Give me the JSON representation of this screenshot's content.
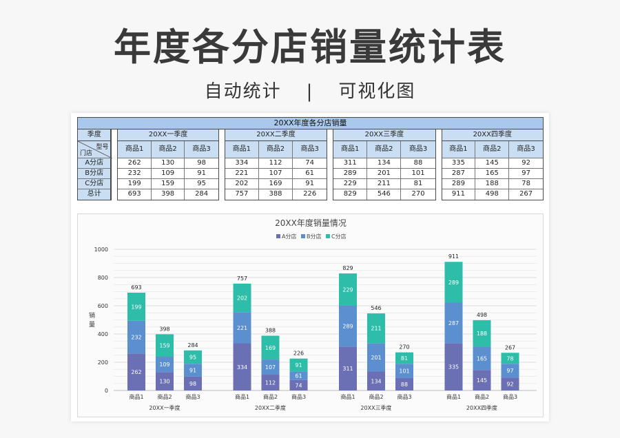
{
  "header": {
    "title": "年度各分店销量统计表",
    "subtitle_left": "自动统计",
    "subtitle_sep": "|",
    "subtitle_right": "可视化图"
  },
  "table": {
    "title": "20XX年度各分店销量",
    "season_label": "季度",
    "corner_top": "型号",
    "corner_bottom": "门店",
    "quarters": [
      {
        "name": "20XX一季度",
        "products": [
          "商品1",
          "商品2",
          "商品3"
        ],
        "rows": [
          [
            262,
            130,
            98
          ],
          [
            232,
            109,
            91
          ],
          [
            199,
            159,
            95
          ]
        ],
        "total": [
          693,
          398,
          284
        ]
      },
      {
        "name": "20XX二季度",
        "products": [
          "商品1",
          "商品2",
          "商品3"
        ],
        "rows": [
          [
            334,
            112,
            74
          ],
          [
            221,
            107,
            61
          ],
          [
            202,
            169,
            91
          ]
        ],
        "total": [
          757,
          388,
          226
        ]
      },
      {
        "name": "20XX三季度",
        "products": [
          "商品1",
          "商品2",
          "商品3"
        ],
        "rows": [
          [
            311,
            134,
            88
          ],
          [
            289,
            201,
            101
          ],
          [
            229,
            211,
            81
          ]
        ],
        "total": [
          829,
          546,
          270
        ]
      },
      {
        "name": "20XX四季度",
        "products": [
          "商品1",
          "商品2",
          "商品3"
        ],
        "rows": [
          [
            335,
            145,
            92
          ],
          [
            287,
            165,
            97
          ],
          [
            289,
            188,
            78
          ]
        ],
        "total": [
          911,
          498,
          267
        ]
      }
    ],
    "row_labels": [
      "A分店",
      "B分店",
      "C分店",
      "总计"
    ]
  },
  "chart_data": {
    "type": "bar",
    "stacked": true,
    "title": "20XX年度销量情况",
    "ylabel": "销量",
    "ylim": [
      0,
      1000
    ],
    "yticks": [
      0,
      200,
      400,
      600,
      800,
      1000
    ],
    "legend_position": "top",
    "groups": [
      "20XX一季度",
      "20XX二季度",
      "20XX三季度",
      "20XX四季度"
    ],
    "categories": [
      "商品1",
      "商品2",
      "商品3"
    ],
    "series": [
      {
        "name": "A分店",
        "color": "#6b6fb3",
        "values": [
          [
            262,
            130,
            98
          ],
          [
            334,
            112,
            74
          ],
          [
            311,
            134,
            88
          ],
          [
            335,
            145,
            92
          ]
        ]
      },
      {
        "name": "B分店",
        "color": "#5b8fd0",
        "values": [
          [
            232,
            109,
            91
          ],
          [
            221,
            107,
            61
          ],
          [
            289,
            201,
            101
          ],
          [
            287,
            165,
            97
          ]
        ]
      },
      {
        "name": "C分店",
        "color": "#2dbda8",
        "values": [
          [
            199,
            159,
            95
          ],
          [
            202,
            169,
            91
          ],
          [
            229,
            211,
            81
          ],
          [
            289,
            188,
            78
          ]
        ]
      }
    ],
    "totals": [
      [
        693,
        398,
        284
      ],
      [
        757,
        388,
        226
      ],
      [
        829,
        546,
        270
      ],
      [
        911,
        498,
        267
      ]
    ]
  }
}
